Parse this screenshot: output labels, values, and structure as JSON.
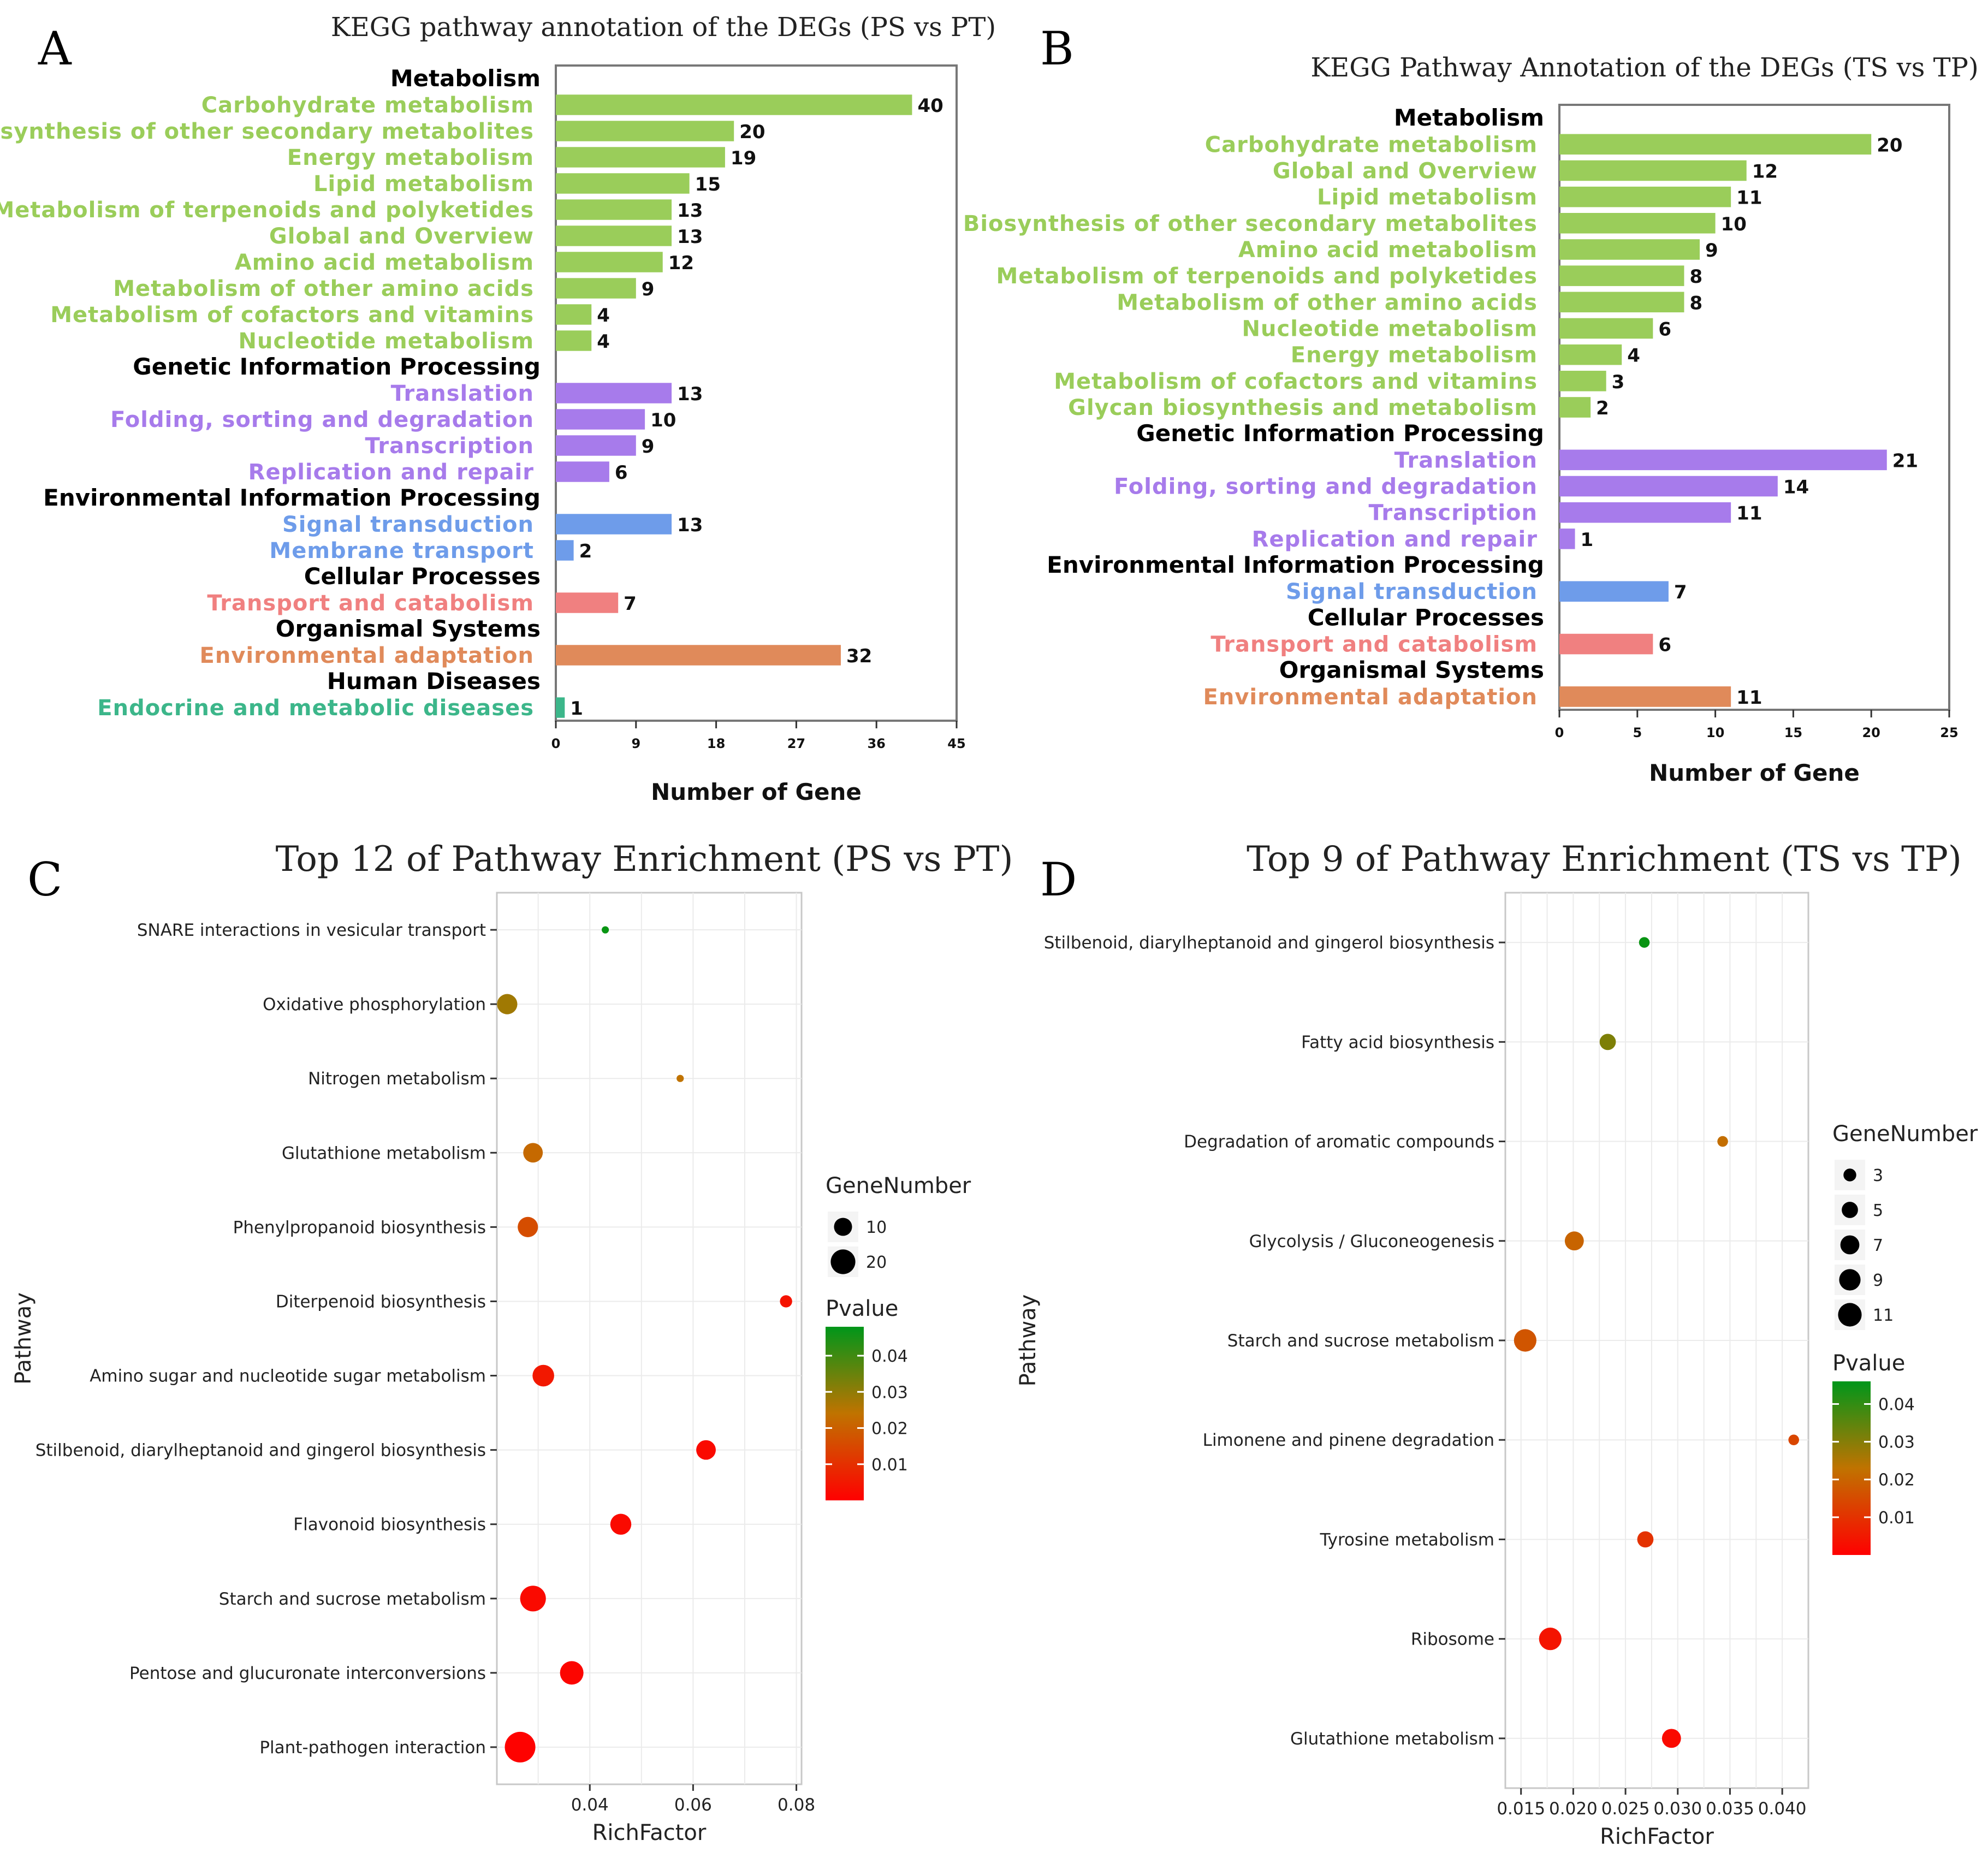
{
  "colors": {
    "metabolism": "#9ACD5A",
    "genetic": "#A77BEB",
    "environmental": "#6E9CEA",
    "cellular": "#F08080",
    "organismal": "#E08A5A",
    "human": "#3CB68A",
    "category": "#000000",
    "frame": "#777777",
    "grid": "#EBEBEB"
  },
  "chart_data": [
    {
      "panel": "A",
      "type": "bar",
      "orientation": "horizontal",
      "title": "KEGG pathway annotation of the DEGs (PS vs PT)",
      "xlabel": "Number of Gene",
      "xlim": [
        0,
        45
      ],
      "xticks": [
        "0",
        "9",
        "18",
        "27",
        "36",
        "45"
      ],
      "rows": [
        {
          "kind": "cat",
          "label": "Metabolism"
        },
        {
          "kind": "bar",
          "label": "Carbohydrate metabolism",
          "value": 40,
          "group": "metabolism"
        },
        {
          "kind": "bar",
          "label": "Biosynthesis of other secondary metabolites",
          "value": 20,
          "group": "metabolism"
        },
        {
          "kind": "bar",
          "label": "Energy metabolism",
          "value": 19,
          "group": "metabolism"
        },
        {
          "kind": "bar",
          "label": "Lipid metabolism",
          "value": 15,
          "group": "metabolism"
        },
        {
          "kind": "bar",
          "label": "Metabolism of terpenoids and polyketides",
          "value": 13,
          "group": "metabolism"
        },
        {
          "kind": "bar",
          "label": "Global and Overview",
          "value": 13,
          "group": "metabolism"
        },
        {
          "kind": "bar",
          "label": "Amino acid metabolism",
          "value": 12,
          "group": "metabolism"
        },
        {
          "kind": "bar",
          "label": "Metabolism of other amino acids",
          "value": 9,
          "group": "metabolism"
        },
        {
          "kind": "bar",
          "label": "Metabolism of cofactors and vitamins",
          "value": 4,
          "group": "metabolism"
        },
        {
          "kind": "bar",
          "label": "Nucleotide metabolism",
          "value": 4,
          "group": "metabolism"
        },
        {
          "kind": "cat",
          "label": "Genetic Information Processing"
        },
        {
          "kind": "bar",
          "label": "Translation",
          "value": 13,
          "group": "genetic"
        },
        {
          "kind": "bar",
          "label": "Folding, sorting and degradation",
          "value": 10,
          "group": "genetic"
        },
        {
          "kind": "bar",
          "label": "Transcription",
          "value": 9,
          "group": "genetic"
        },
        {
          "kind": "bar",
          "label": "Replication and repair",
          "value": 6,
          "group": "genetic"
        },
        {
          "kind": "cat",
          "label": "Environmental Information Processing"
        },
        {
          "kind": "bar",
          "label": "Signal transduction",
          "value": 13,
          "group": "environmental"
        },
        {
          "kind": "bar",
          "label": "Membrane transport",
          "value": 2,
          "group": "environmental"
        },
        {
          "kind": "cat",
          "label": "Cellular Processes"
        },
        {
          "kind": "bar",
          "label": "Transport and catabolism",
          "value": 7,
          "group": "cellular"
        },
        {
          "kind": "cat",
          "label": "Organismal Systems"
        },
        {
          "kind": "bar",
          "label": "Environmental adaptation",
          "value": 32,
          "group": "organismal"
        },
        {
          "kind": "cat",
          "label": "Human Diseases"
        },
        {
          "kind": "bar",
          "label": "Endocrine and metabolic diseases",
          "value": 1,
          "group": "human"
        }
      ]
    },
    {
      "panel": "B",
      "type": "bar",
      "orientation": "horizontal",
      "title": "KEGG Pathway Annotation of the DEGs (TS vs TP)",
      "xlabel": "Number of Gene",
      "xlim": [
        0,
        25
      ],
      "xticks": [
        "0",
        "5",
        "10",
        "15",
        "20",
        "25"
      ],
      "rows": [
        {
          "kind": "cat",
          "label": "Metabolism"
        },
        {
          "kind": "bar",
          "label": "Carbohydrate metabolism",
          "value": 20,
          "group": "metabolism"
        },
        {
          "kind": "bar",
          "label": "Global and Overview",
          "value": 12,
          "group": "metabolism"
        },
        {
          "kind": "bar",
          "label": "Lipid metabolism",
          "value": 11,
          "group": "metabolism"
        },
        {
          "kind": "bar",
          "label": "Biosynthesis of other secondary metabolites",
          "value": 10,
          "group": "metabolism"
        },
        {
          "kind": "bar",
          "label": "Amino acid metabolism",
          "value": 9,
          "group": "metabolism"
        },
        {
          "kind": "bar",
          "label": "Metabolism of terpenoids and polyketides",
          "value": 8,
          "group": "metabolism"
        },
        {
          "kind": "bar",
          "label": "Metabolism of other amino acids",
          "value": 8,
          "group": "metabolism"
        },
        {
          "kind": "bar",
          "label": "Nucleotide metabolism",
          "value": 6,
          "group": "metabolism"
        },
        {
          "kind": "bar",
          "label": "Energy metabolism",
          "value": 4,
          "group": "metabolism"
        },
        {
          "kind": "bar",
          "label": "Metabolism of cofactors and vitamins",
          "value": 3,
          "group": "metabolism"
        },
        {
          "kind": "bar",
          "label": "Glycan biosynthesis and metabolism",
          "value": 2,
          "group": "metabolism"
        },
        {
          "kind": "cat",
          "label": "Genetic Information Processing"
        },
        {
          "kind": "bar",
          "label": "Translation",
          "value": 21,
          "group": "genetic"
        },
        {
          "kind": "bar",
          "label": "Folding, sorting and degradation",
          "value": 14,
          "group": "genetic"
        },
        {
          "kind": "bar",
          "label": "Transcription",
          "value": 11,
          "group": "genetic"
        },
        {
          "kind": "bar",
          "label": "Replication and repair",
          "value": 1,
          "group": "genetic"
        },
        {
          "kind": "cat",
          "label": "Environmental Information Processing"
        },
        {
          "kind": "bar",
          "label": "Signal transduction",
          "value": 7,
          "group": "environmental"
        },
        {
          "kind": "cat",
          "label": "Cellular Processes"
        },
        {
          "kind": "bar",
          "label": "Transport and catabolism",
          "value": 6,
          "group": "cellular"
        },
        {
          "kind": "cat",
          "label": "Organismal Systems"
        },
        {
          "kind": "bar",
          "label": "Environmental adaptation",
          "value": 11,
          "group": "organismal"
        }
      ]
    },
    {
      "panel": "C",
      "type": "scatter",
      "title": "Top 12 of Pathway Enrichment  (PS vs PT)",
      "xlabel": "RichFactor",
      "ylabel": "Pathway",
      "xlim": [
        0.022,
        0.081
      ],
      "xticks": [
        0.04,
        0.06,
        0.08
      ],
      "xtick_labels": [
        "0.04",
        "0.06",
        "0.08"
      ],
      "pvalue_range": [
        0.0,
        0.048
      ],
      "legend_size_title": "GeneNumber",
      "legend_size": [
        {
          "label": "10",
          "value": 10
        },
        {
          "label": "20",
          "value": 20
        }
      ],
      "legend_color_title": "Pvalue",
      "legend_color_ticks": [
        "0.04",
        "0.03",
        "0.02",
        "0.01"
      ],
      "legend_color_values": [
        0.04,
        0.03,
        0.02,
        0.01
      ],
      "points": [
        {
          "pathway": "SNARE interactions in vesicular transport",
          "rich": 0.043,
          "genes": 1,
          "pvalue": 0.047
        },
        {
          "pathway": "Oxidative phosphorylation",
          "rich": 0.024,
          "genes": 13,
          "pvalue": 0.028
        },
        {
          "pathway": "Nitrogen metabolism",
          "rich": 0.0575,
          "genes": 1,
          "pvalue": 0.024
        },
        {
          "pathway": "Glutathione metabolism",
          "rich": 0.029,
          "genes": 12,
          "pvalue": 0.022
        },
        {
          "pathway": "Phenylpropanoid biosynthesis",
          "rich": 0.028,
          "genes": 13,
          "pvalue": 0.016
        },
        {
          "pathway": "Diterpenoid biosynthesis",
          "rich": 0.078,
          "genes": 4,
          "pvalue": 0.004
        },
        {
          "pathway": "Amino sugar and nucleotide sugar metabolism",
          "rich": 0.031,
          "genes": 15,
          "pvalue": 0.005
        },
        {
          "pathway": "Stilbenoid, diarylheptanoid and gingerol biosynthesis",
          "rich": 0.0625,
          "genes": 12,
          "pvalue": 0.002
        },
        {
          "pathway": "Flavonoid biosynthesis",
          "rich": 0.046,
          "genes": 14,
          "pvalue": 0.002
        },
        {
          "pathway": "Starch and sucrose metabolism",
          "rich": 0.029,
          "genes": 22,
          "pvalue": 0.002
        },
        {
          "pathway": "Pentose and glucuronate interconversions",
          "rich": 0.0365,
          "genes": 18,
          "pvalue": 0.001
        },
        {
          "pathway": "Plant-pathogen interaction",
          "rich": 0.0265,
          "genes": 32,
          "pvalue": 0.0005
        }
      ]
    },
    {
      "panel": "D",
      "type": "scatter",
      "title": "Top 9 of Pathway Enrichment (TS vs TP)",
      "xlabel": "RichFactor",
      "ylabel": "Pathway",
      "xlim": [
        0.0135,
        0.0425
      ],
      "xticks": [
        0.015,
        0.02,
        0.025,
        0.03,
        0.035,
        0.04
      ],
      "xtick_labels": [
        "0.015",
        "0.020",
        "0.025",
        "0.030",
        "0.035",
        "0.040"
      ],
      "pvalue_range": [
        0.0,
        0.046
      ],
      "legend_size_title": "GeneNumber",
      "legend_size": [
        {
          "label": "3",
          "value": 3
        },
        {
          "label": "5",
          "value": 5
        },
        {
          "label": "7",
          "value": 7
        },
        {
          "label": "9",
          "value": 9
        },
        {
          "label": "11",
          "value": 11
        }
      ],
      "legend_color_title": "Pvalue",
      "legend_color_ticks": [
        "0.04",
        "0.03",
        "0.02",
        "0.01"
      ],
      "legend_color_values": [
        0.04,
        0.03,
        0.02,
        0.01
      ],
      "points": [
        {
          "pathway": "Stilbenoid, diarylheptanoid and gingerol biosynthesis",
          "rich": 0.0268,
          "genes": 2,
          "pvalue": 0.045
        },
        {
          "pathway": "Fatty acid biosynthesis",
          "rich": 0.0233,
          "genes": 5,
          "pvalue": 0.031
        },
        {
          "pathway": "Degradation of aromatic compounds",
          "rich": 0.0343,
          "genes": 2,
          "pvalue": 0.022
        },
        {
          "pathway": "Glycolysis / Gluconeogenesis",
          "rich": 0.0201,
          "genes": 7,
          "pvalue": 0.02
        },
        {
          "pathway": "Starch and sucrose metabolism",
          "rich": 0.0154,
          "genes": 10,
          "pvalue": 0.017
        },
        {
          "pathway": "Limonene and pinene degradation",
          "rich": 0.0411,
          "genes": 2,
          "pvalue": 0.014
        },
        {
          "pathway": "Tyrosine metabolism",
          "rich": 0.0269,
          "genes": 5,
          "pvalue": 0.01
        },
        {
          "pathway": "Ribosome",
          "rich": 0.0178,
          "genes": 10,
          "pvalue": 0.004
        },
        {
          "pathway": "Glutathione metabolism",
          "rich": 0.0294,
          "genes": 7,
          "pvalue": 0.002
        }
      ]
    }
  ]
}
